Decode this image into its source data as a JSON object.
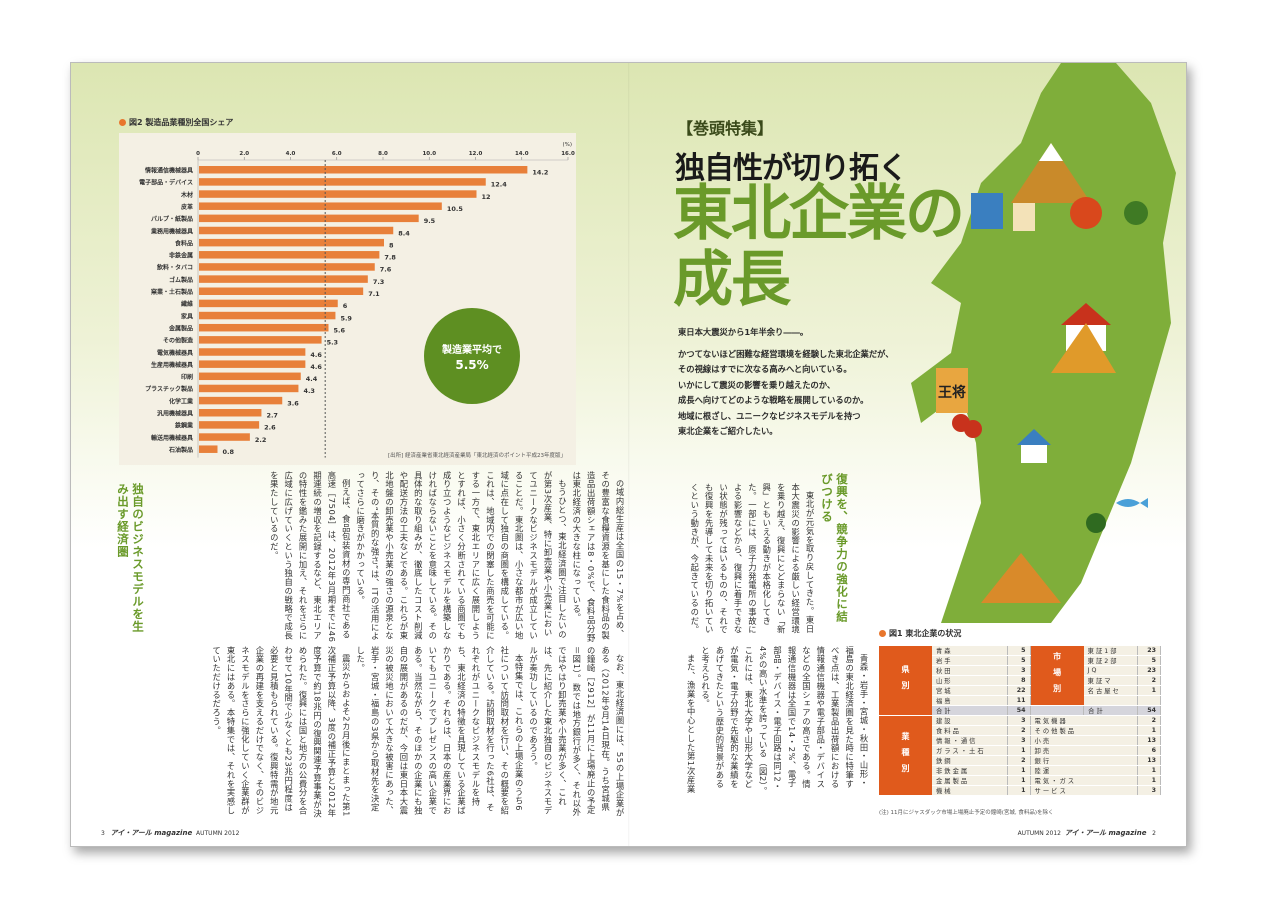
{
  "left_page": {
    "chart_heading": "図2 製造品業種別全国シェア",
    "average_circle": {
      "line1": "製造業平均で",
      "line2": "5.5%"
    },
    "source": "[出所] 経済産業省東北経済産業局「東北経済のポイント平成23年度版」",
    "section_heading": "独自のビジネスモデルを生み出す経済圏",
    "top_text": [
      "の域内総生産は全国の15・7%を占め、その豊富な食糧資源を基にした食料品の製造品出荷額シェアは8・0%で、食料品分野は東北経済の大きな柱になっている。",
      "もうひとつ、東北経済圏で注目したいのが第3次産業、特に卸売業や小売業においてユニークなビジネスモデルが成立していることだ。東北圏は、小さな都市が広い地域に点在して独自の商圏を構成している。これは、地域内での閉塞した商売を可能にする一方で、東北エリアに広く展開しようとすれば、小さく分断されている商圏でも成り立つようなビジネスモデルを構築しなければならないことを意味している。その具体的な取り組みが、徹底したコスト削減や配送方法の工夫などである。これらが東北地盤の卸売業や小売業の強さの源泉となり、その“本質的な強さ”は、ITの活用によってさらに磨きがかかっている。",
      "例えば、食品包装資材の専門商社である高速［7504］は、2012年3月期までに46期連続の増収を記録するなど、東北エリアの特性を鑑みた展開に加え、それをさらに広域に広げていくという独自の戦略で成長を果たしているのだ。"
    ],
    "bottom_text": [
      "なお、東北経済圏には、55の上場企業がある（2012年9月14日現在。うち宮城県の鐘崎［2912］が11月に上場廃止の予定＝図1）。数では地方銀行が多く、それ以外ではやはり卸売業や小売業が多く、これは、先に紹介した東北独自のビジネスモデルが奏功しているのであろう。",
      "本特集では、これらの上場企業のうち6社について訪問取材を行い、その概要を紹介している。訪問取材を行った6社は、それぞれがユニークなビジネスモデルを持ち、東北経済の特徴を具現している企業ばかりである。それらは、日本の産業界においてもユニークでプレゼンスの高い企業である。当然ながら、そのほかの企業にも独自の展開があるのだが、今回は東日本大震災の被災地において大きな被害にあった、岩手・宮城・福島の3県から取材先を決定した。",
      "震災からおよそ2カ月後にまとまった第1次補正予算以降、3度の補正予算と2012年度予算で約18兆円の復興関連予算事業が決められた。復興には国と地方の公費分を合わせて10年間で少なくとも23兆円程度は必要と見積もられている。復興特需が地元企業の再建を支えるだけでなく、そのビジネスモデルをさらに強化していく企業群が東北にはある。本特集では、それを実感していただけるだろう。"
    ],
    "footer": {
      "page": "3",
      "magazine": "アイ・アール magazine",
      "issue": "AUTUMN 2012"
    }
  },
  "right_page": {
    "kicker": "【巻頭特集】",
    "headline": "独自性が切り拓く",
    "title_line1": "東北企業の",
    "title_line2": "成長",
    "intro_lead": "東日本大震災から1年半余り――。",
    "intro_lines": [
      "かつてないほど困難な経営環境を経験した東北企業だが、",
      "その視線はすでに次なる高みへと向いている。",
      "いかにして震災の影響を乗り越えたのか、",
      "成長へ向けてどのような戦略を展開しているのか。",
      "地域に根ざし、ユニークなビジネスモデルを持つ",
      "東北企業をご紹介したい。"
    ],
    "section_heading": "復興を、競争力の強化に結びつける",
    "top_text": [
      "東北が元気を取り戻してきた。東日本大震災の影響による厳しい経営環境を乗り越え、復興にとどまらない「新興」ともいえる動きが本格化してきた。一部には、原子力発電所の事故による影響などから、復興に着手できない状態が残ってはいるものの、それでも復興を先導して未来を切り拓いていくという動きが、今起きているのだ。"
    ],
    "bottom_text": [
      "青森・岩手・宮城・秋田・山形・福島の東北経済圏を見た時に特筆すべき点は、工業製品出荷額における情報通信機器や電子部品・デバイスなどの全国シェアの高さである。情報通信機器は全国で14・2%、電子部品・デバイス・電子回路は同12・4%の高い水準を誇っている（図2）。これには、東北大学や山形大学などが電気・電子分野で先駆的な業績をあげてきたという歴史的背景があると考えられる。",
      "また、漁業を中心とした第1次産業"
    ],
    "map_sign": "王将",
    "table": {
      "title": "図1 東北企業の状況",
      "by_prefecture": {
        "label": "県別",
        "rows": [
          [
            "青森",
            "5"
          ],
          [
            "岩手",
            "5"
          ],
          [
            "秋田",
            "3"
          ],
          [
            "山形",
            "8"
          ],
          [
            "宮城",
            "22"
          ],
          [
            "福島",
            "11"
          ]
        ],
        "total": [
          "合計",
          "54"
        ]
      },
      "by_market": {
        "label": "市場別",
        "rows": [
          [
            "東証1部",
            "23"
          ],
          [
            "東証2部",
            "5"
          ],
          [
            "JQ",
            "23"
          ],
          [
            "東証マ",
            "2"
          ],
          [
            "名古屋セ",
            "1"
          ],
          [
            "",
            ""
          ]
        ],
        "total": [
          "合計",
          "54"
        ]
      },
      "by_industry": {
        "label": "業種別",
        "left": [
          [
            "建設",
            "3"
          ],
          [
            "食料品",
            "2"
          ],
          [
            "情報・通信",
            "3"
          ],
          [
            "ガラス・土石",
            "1"
          ],
          [
            "鉄鋼",
            "2"
          ],
          [
            "非鉄金属",
            "1"
          ],
          [
            "金属製品",
            "1"
          ],
          [
            "機械",
            "1"
          ]
        ],
        "right": [
          [
            "電気機器",
            "2"
          ],
          [
            "その他製品",
            "1"
          ],
          [
            "小売",
            "13"
          ],
          [
            "卸売",
            "6"
          ],
          [
            "銀行",
            "13"
          ],
          [
            "陸運",
            "1"
          ],
          [
            "電気・ガス",
            "1"
          ],
          [
            "サービス",
            "3"
          ]
        ]
      },
      "note": "(注) 11月にジャスダック市場上場廃止予定の鐘崎(宮城, 食料品)を除く"
    },
    "footer": {
      "page": "2",
      "magazine": "アイ・アール magazine",
      "issue": "AUTUMN 2012"
    }
  },
  "colors": {
    "bar": "#e8803a",
    "accent_green": "#6a9a2a",
    "table_orange": "#e05a1c",
    "circle_green": "#5e8f22"
  },
  "chart_data": {
    "type": "bar",
    "orientation": "horizontal",
    "title": "図2 製造品業種別全国シェア",
    "unit": "(%)",
    "xlim": [
      0,
      16
    ],
    "ticks": [
      "0",
      "2.0",
      "4.0",
      "6.0",
      "8.0",
      "10.0",
      "12.0",
      "14.0",
      "16.0"
    ],
    "reference_line": 5.5,
    "categories": [
      "情報通信機械器具",
      "電子部品・デバイス",
      "木材",
      "皮革",
      "パルプ・紙製品",
      "業務用機械器具",
      "食料品",
      "非鉄金属",
      "飲料・タバコ",
      "ゴム製品",
      "窯業・土石製品",
      "繊維",
      "家具",
      "金属製品",
      "その他製造",
      "電気機械器具",
      "生産用機械器具",
      "印刷",
      "プラスチック製品",
      "化学工業",
      "汎用機械器具",
      "鉄鋼業",
      "輸送用機械器具",
      "石油製品"
    ],
    "values": [
      14.2,
      12.4,
      12.0,
      10.5,
      9.5,
      8.4,
      8.0,
      7.8,
      7.6,
      7.3,
      7.1,
      6.0,
      5.9,
      5.6,
      5.3,
      4.6,
      4.6,
      4.4,
      4.3,
      3.6,
      2.7,
      2.6,
      2.2,
      0.8
    ]
  }
}
